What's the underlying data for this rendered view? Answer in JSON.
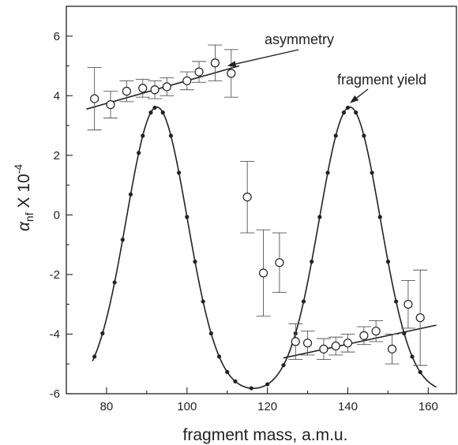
{
  "chart_data": {
    "type": "scatter",
    "title": "",
    "xlabel": "fragment mass, a.m.u.",
    "ylabel": {
      "symbol": "α",
      "subscript": "nf",
      "text": " X 10",
      "superscript": "-4"
    },
    "xlim": [
      70,
      167
    ],
    "ylim": [
      -6,
      7
    ],
    "x_ticks": [
      80,
      100,
      120,
      140,
      160
    ],
    "y_ticks": [
      -6,
      -4,
      -2,
      0,
      2,
      4,
      6
    ],
    "grid": false,
    "legend": "none",
    "annotations": [
      {
        "text": "asymmetry",
        "target": [
          110,
          5.0
        ]
      },
      {
        "text": "fragment yield",
        "target": [
          140.5,
          3.75
        ]
      }
    ],
    "series": [
      {
        "kind": "asymmetry-data",
        "marker": "open-circle",
        "points": [
          {
            "x": 77,
            "y": 3.9,
            "err": 1.05
          },
          {
            "x": 81,
            "y": 3.7,
            "err": 0.45
          },
          {
            "x": 85,
            "y": 4.15,
            "err": 0.35
          },
          {
            "x": 89,
            "y": 4.25,
            "err": 0.3
          },
          {
            "x": 92,
            "y": 4.2,
            "err": 0.3
          },
          {
            "x": 95,
            "y": 4.3,
            "err": 0.3
          },
          {
            "x": 100,
            "y": 4.5,
            "err": 0.3
          },
          {
            "x": 103,
            "y": 4.8,
            "err": 0.35
          },
          {
            "x": 107,
            "y": 5.1,
            "err": 0.6
          },
          {
            "x": 111,
            "y": 4.75,
            "err": 0.8
          },
          {
            "x": 115,
            "y": 0.6,
            "err": 1.2
          },
          {
            "x": 119,
            "y": -1.95,
            "err": 1.45
          },
          {
            "x": 123,
            "y": -1.6,
            "err": 1.0
          },
          {
            "x": 127,
            "y": -4.25,
            "err": 0.6
          },
          {
            "x": 130,
            "y": -4.3,
            "err": 0.4
          },
          {
            "x": 134,
            "y": -4.5,
            "err": 0.35
          },
          {
            "x": 137,
            "y": -4.4,
            "err": 0.3
          },
          {
            "x": 140,
            "y": -4.3,
            "err": 0.3
          },
          {
            "x": 144,
            "y": -4.05,
            "err": 0.3
          },
          {
            "x": 147,
            "y": -3.9,
            "err": 0.35
          },
          {
            "x": 151,
            "y": -4.5,
            "err": 0.5
          },
          {
            "x": 155,
            "y": -3.0,
            "err": 0.8
          },
          {
            "x": 158,
            "y": -3.45,
            "err": 1.6
          }
        ]
      },
      {
        "kind": "fragment-yield",
        "marker": "filled-dot-with-curve",
        "curve": {
          "type": "double-gaussian",
          "peaks": [
            92.5,
            140.5
          ],
          "sigma": 7.6,
          "baseline": -5.95,
          "peak_value": 3.62
        },
        "points_x": [
          77,
          79,
          82,
          84,
          86,
          88,
          89,
          91,
          92,
          94,
          96,
          98,
          100,
          102,
          104,
          106,
          108,
          110,
          112,
          116,
          120,
          124,
          127,
          129,
          131,
          133,
          135,
          137,
          139,
          140,
          142,
          144,
          146,
          148,
          150,
          152,
          154,
          156,
          158
        ]
      },
      {
        "kind": "fit-line",
        "name": "asymmetry-left",
        "x": [
          75,
          113
        ],
        "y": [
          3.55,
          5.0
        ]
      },
      {
        "kind": "fit-line",
        "name": "asymmetry-right",
        "x": [
          124,
          162
        ],
        "y": [
          -4.8,
          -3.7
        ]
      }
    ]
  }
}
